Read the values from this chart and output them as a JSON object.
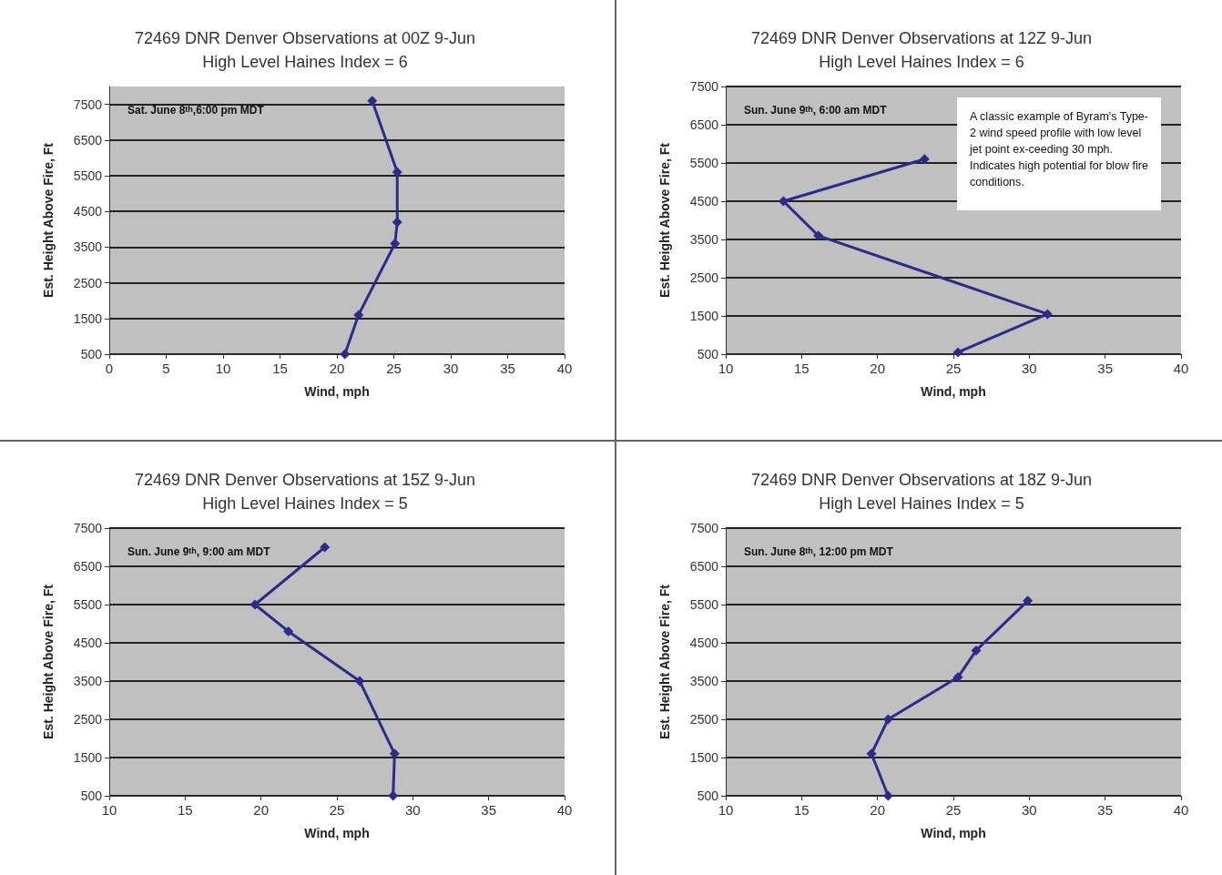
{
  "chart_data": [
    {
      "type": "line",
      "title": "72469 DNR Denver Observations at 00Z 9-Jun",
      "subtitle": "High Level Haines Index = 6",
      "xlabel": "Wind, mph",
      "ylabel": "Est. Height Above Fire, Ft",
      "annotations": [
        "Sat. June 8$^{th}$,6:00 pm MDT"
      ],
      "series": [
        {
          "color": "#2b2b8c",
          "x": [
            20.7,
            21.9,
            25.1,
            25.3,
            25.3,
            23.1
          ],
          "values": [
            500,
            1600,
            3600,
            4200,
            5600,
            7600
          ]
        }
      ],
      "xlim": [
        0,
        40
      ],
      "xticks": [
        0,
        5,
        10,
        15,
        20,
        25,
        30,
        35,
        40
      ],
      "ylim": [
        500,
        8000
      ],
      "yticks": [
        500,
        1500,
        2500,
        3500,
        4500,
        5500,
        6500,
        7500
      ],
      "grid": "y",
      "marker": "diamond",
      "line_style": "solid"
    },
    {
      "type": "line",
      "title": "72469 DNR Denver Observations at 12Z 9-Jun",
      "subtitle": "High Level Haines Index = 6",
      "xlabel": "Wind, mph",
      "ylabel": "Est. Height Above Fire, Ft",
      "annotations": [
        "Sun. June 9$^{th}$, 6:00 am MDT",
        "A classic example of Byram's Type-2 wind speed profile with low level jet point ex-ceeding 30 mph. Indicates high potential for blow fire conditions."
      ],
      "series": [
        {
          "color": "#2b2b8c",
          "x": [
            25.3,
            31.2,
            16.1,
            13.8,
            23.1
          ],
          "values": [
            550,
            1550,
            3600,
            4500,
            5600
          ]
        }
      ],
      "xlim": [
        10,
        40
      ],
      "xticks": [
        10,
        15,
        20,
        25,
        30,
        35,
        40
      ],
      "ylim": [
        500,
        7500
      ],
      "yticks": [
        500,
        1500,
        2500,
        3500,
        4500,
        5500,
        6500,
        7500
      ],
      "grid": "y",
      "marker": "diamond",
      "line_style": "solid"
    },
    {
      "type": "line",
      "title": "72469 DNR Denver Observations at 15Z 9-Jun",
      "subtitle": "High Level Haines Index = 5",
      "xlabel": "Wind, mph",
      "ylabel": "Est. Height Above Fire, Ft",
      "annotations": [
        "Sun. June 9$^{th}$, 9:00 am MDT"
      ],
      "series": [
        {
          "color": "#2b2b8c",
          "x": [
            28.7,
            28.8,
            26.5,
            21.8,
            19.6,
            24.2
          ],
          "values": [
            500,
            1600,
            3500,
            4800,
            5500,
            7000
          ]
        }
      ],
      "xlim": [
        10,
        40
      ],
      "xticks": [
        10,
        15,
        20,
        25,
        30,
        35,
        40
      ],
      "ylim": [
        500,
        7500
      ],
      "yticks": [
        500,
        1500,
        2500,
        3500,
        4500,
        5500,
        6500,
        7500
      ],
      "grid": "y",
      "marker": "diamond",
      "line_style": "solid"
    },
    {
      "type": "line",
      "title": "72469 DNR Denver Observations at 18Z 9-Jun",
      "subtitle": "High Level Haines Index = 5",
      "xlabel": "Wind, mph",
      "ylabel": "Est. Height Above Fire, Ft",
      "annotations": [
        "Sun. June 8$^{th}$, 12:00 pm MDT"
      ],
      "series": [
        {
          "color": "#2b2b8c",
          "x": [
            20.7,
            19.6,
            20.7,
            25.3,
            26.5,
            29.9
          ],
          "values": [
            500,
            1600,
            2500,
            3600,
            4300,
            5600
          ]
        }
      ],
      "xlim": [
        10,
        40
      ],
      "xticks": [
        10,
        15,
        20,
        25,
        30,
        35,
        40
      ],
      "ylim": [
        500,
        7500
      ],
      "yticks": [
        500,
        1500,
        2500,
        3500,
        4500,
        5500,
        6500,
        7500
      ],
      "grid": "y",
      "marker": "diamond",
      "line_style": "solid"
    }
  ]
}
